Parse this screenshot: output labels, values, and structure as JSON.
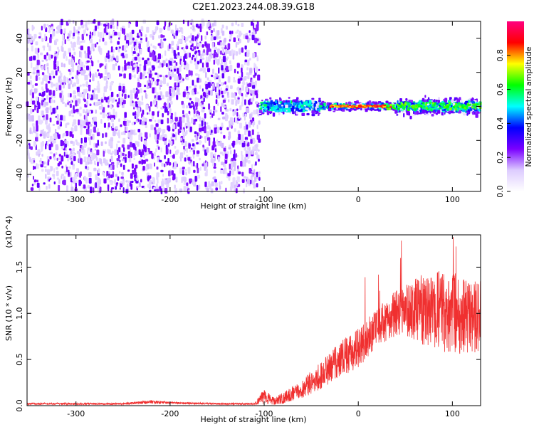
{
  "title": "C2E1.2023.244.08.39.G18",
  "chart_data": [
    {
      "type": "heatmap",
      "xlabel": "Height of straight line (km)",
      "ylabel": "Frequency (Hz)",
      "xlim": [
        -352,
        130
      ],
      "ylim": [
        -50,
        50
      ],
      "xticks": [
        -300,
        -200,
        -100,
        0,
        100
      ],
      "yticks": [
        -40,
        -20,
        0,
        20,
        40
      ],
      "colorbar": {
        "label": "Normalized spectral amplitude",
        "range": [
          0.0,
          1.0
        ],
        "ticks": [
          "0.0",
          "0.2",
          "0.4",
          "0.6",
          "0.8"
        ],
        "colormap": [
          "#ffffff",
          "#ddccff",
          "#7a00ff",
          "#0000ff",
          "#00ffff",
          "#00ff00",
          "#ffff00",
          "#ff0000",
          "#ff0080"
        ]
      },
      "regions": [
        {
          "x_range": [
            -352,
            -105
          ],
          "freq_range": [
            -50,
            50
          ],
          "typical_amplitude": 0.03
        },
        {
          "x_range": [
            -105,
            130
          ],
          "freq_range": [
            -10,
            10
          ],
          "typical_amplitude": 0.35
        },
        {
          "x_range": [
            -30,
            35
          ],
          "freq_range": [
            -2,
            2
          ],
          "typical_amplitude": 0.9
        }
      ]
    },
    {
      "type": "line",
      "xlabel": "Height of straight line (km)",
      "ylabel": "SNR (10 * v/v)",
      "yscale_note": "(x10^4)",
      "xlim": [
        -352,
        130
      ],
      "ylim": [
        0,
        1.85
      ],
      "xticks": [
        -300,
        -200,
        -100,
        0,
        100
      ],
      "yticks": [
        "0.0",
        "0.5",
        "1.0",
        "1.5"
      ],
      "color": "#f03030",
      "series": [
        {
          "x": [
            -352,
            -300,
            -250,
            -220,
            -200,
            -150,
            -110,
            -100,
            -90,
            -80,
            -60,
            -40,
            -20,
            0,
            20,
            40,
            60,
            80,
            100,
            120,
            130
          ],
          "y": [
            0.02,
            0.02,
            0.02,
            0.04,
            0.03,
            0.02,
            0.02,
            0.1,
            0.05,
            0.08,
            0.18,
            0.32,
            0.5,
            0.62,
            0.85,
            1.0,
            1.05,
            1.02,
            1.0,
            0.95,
            0.95
          ],
          "spread": [
            0.01,
            0.01,
            0.01,
            0.02,
            0.01,
            0.01,
            0.01,
            0.08,
            0.04,
            0.06,
            0.1,
            0.15,
            0.2,
            0.22,
            0.2,
            0.25,
            0.35,
            0.45,
            0.45,
            0.4,
            0.4
          ]
        }
      ]
    }
  ]
}
